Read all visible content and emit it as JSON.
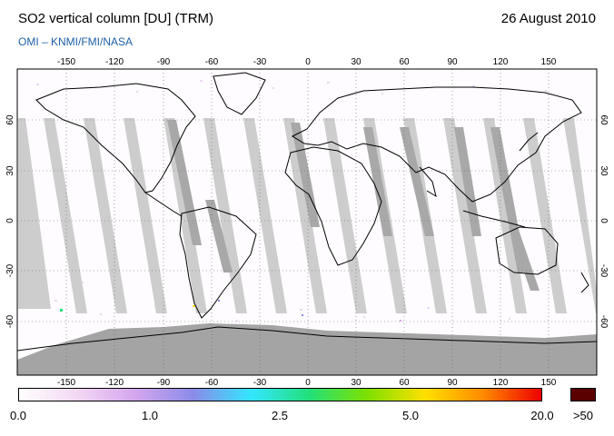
{
  "title": "SO2 vertical column [DU] (TRM)",
  "date": "26 August 2010",
  "credit": "OMI  –  KNMI/FMI/NASA",
  "map": {
    "projection": "equirectangular",
    "lon_range": [
      -180,
      180
    ],
    "lat_range": [
      -90,
      90
    ],
    "graticule": "dotted",
    "lon_ticks": [
      "-150",
      "-120",
      "-90",
      "-60",
      "-30",
      "0",
      "30",
      "60",
      "90",
      "120",
      "150"
    ],
    "lat_ticks": [
      "60",
      "30",
      "0",
      "-30",
      "-60"
    ],
    "colors": {
      "background": "#fefcfe",
      "swath_gap": "#cdcdcd",
      "swath_overlap": "#a8a8a8",
      "polar_night": "#a4a4a4",
      "coastline": "#000000"
    }
  },
  "colorbar": {
    "labels": [
      "0.0",
      "1.0",
      "2.5",
      "5.0",
      "20.0"
    ],
    "over_label": ">50",
    "over_color": "#5a0000",
    "stops": [
      "#ffffff",
      "#f3d8f3",
      "#d4a6ee",
      "#8b8be8",
      "#33e6ff",
      "#22e07a",
      "#7ee000",
      "#ffe000",
      "#ff8a00",
      "#ee0000"
    ]
  }
}
